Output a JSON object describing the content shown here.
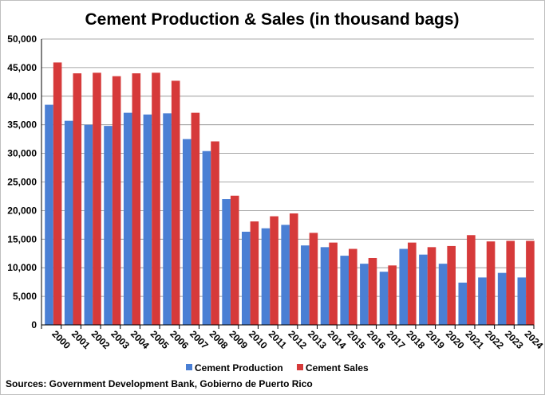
{
  "chart_data": {
    "type": "bar",
    "title": "Cement Production & Sales (in thousand bags)",
    "categories": [
      "2000",
      "2001",
      "2002",
      "2003",
      "2004",
      "2005",
      "2006",
      "2007",
      "2008",
      "2009",
      "2010",
      "2011",
      "2012",
      "2013",
      "2014",
      "2015",
      "2016",
      "2017",
      "2018",
      "2019",
      "2020",
      "2021",
      "2022",
      "2023",
      "2024"
    ],
    "series": [
      {
        "name": "Cement Production",
        "color": "#4a7fd4",
        "values": [
          38500,
          35700,
          35000,
          34800,
          37100,
          36800,
          37000,
          32500,
          30400,
          22000,
          16300,
          16900,
          17500,
          13900,
          13600,
          12100,
          10700,
          9300,
          13300,
          12300,
          10700,
          7400,
          8300,
          9100,
          8300
        ]
      },
      {
        "name": "Cement Sales",
        "color": "#d63a3a",
        "values": [
          45900,
          44000,
          44100,
          43500,
          44000,
          44100,
          42700,
          37100,
          32100,
          22600,
          18100,
          19000,
          19500,
          16100,
          14400,
          13300,
          11700,
          10400,
          14400,
          13600,
          13800,
          15700,
          14600,
          14700,
          14700
        ]
      }
    ],
    "ylim": [
      0,
      50000
    ],
    "yticks": [
      "0",
      "5,000",
      "10,000",
      "15,000",
      "20,000",
      "25,000",
      "30,000",
      "35,000",
      "40,000",
      "45,000",
      "50,000"
    ],
    "grid": true,
    "legend_position": "bottom"
  },
  "source_note": "Sources: Government Development Bank, Gobierno de Puerto Rico"
}
